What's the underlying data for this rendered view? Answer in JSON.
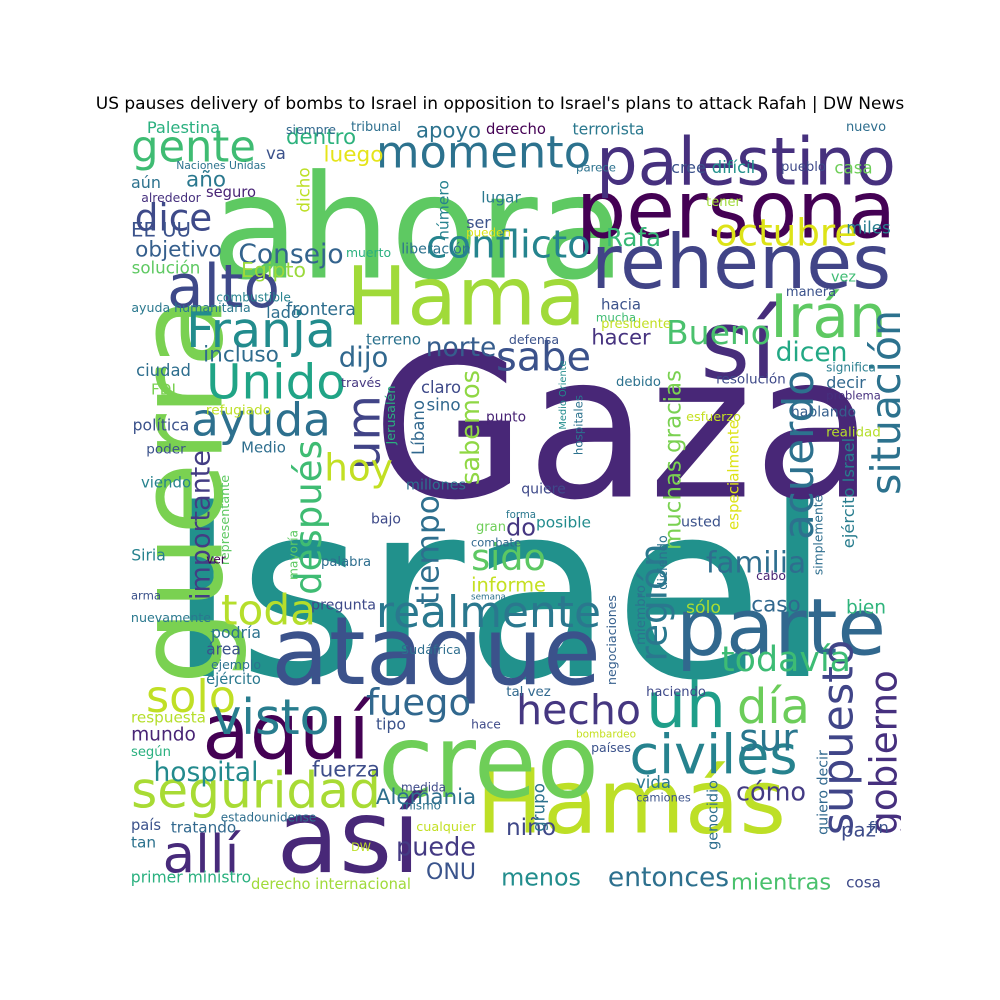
{
  "title": "US pauses delivery of bombs to Israel in opposition to Israel's plans to attack Rafah | DW News",
  "words": [
    {
      "t": "Israel",
      "c": "#21918c"
    },
    {
      "t": "Gaza",
      "c": "#482777"
    },
    {
      "t": "ahora",
      "c": "#5ec962"
    },
    {
      "t": "guerra",
      "c": "#7ad151"
    },
    {
      "t": "persona",
      "c": "#440154"
    },
    {
      "t": "Hama",
      "c": "#a0da39"
    },
    {
      "t": "Hamás",
      "c": "#bddf26"
    },
    {
      "t": "ataque",
      "c": "#3b528b"
    },
    {
      "t": "creo",
      "c": "#6ece58"
    },
    {
      "t": "así",
      "c": "#482878"
    },
    {
      "t": "rehenes",
      "c": "#414487"
    },
    {
      "t": "sí",
      "c": "#472d7b"
    },
    {
      "t": "palestino",
      "c": "#46307e"
    },
    {
      "t": "parte",
      "c": "#31688e"
    },
    {
      "t": "aquí",
      "c": "#440154"
    },
    {
      "t": "momento",
      "c": "#2c728e"
    },
    {
      "t": "uh",
      "c": "#1f9e89"
    },
    {
      "t": "Unido",
      "c": "#20a486"
    },
    {
      "t": "realmente",
      "c": "#2a788e"
    },
    {
      "t": "seguridad",
      "c": "#a8db34"
    },
    {
      "t": "sabe",
      "c": "#3b528b"
    },
    {
      "t": "Irán",
      "c": "#5ec962"
    },
    {
      "t": "alto",
      "c": "#3e4989"
    },
    {
      "t": "gente",
      "c": "#3fbc73"
    },
    {
      "t": "conflicto",
      "c": "#25848e"
    },
    {
      "t": "Franja",
      "c": "#228c8d"
    },
    {
      "t": "ayuda",
      "c": "#2d708e"
    },
    {
      "t": "hecho",
      "c": "#453781"
    },
    {
      "t": "allí",
      "c": "#472a7a"
    },
    {
      "t": "situación",
      "c": "#2c728e"
    },
    {
      "t": "civiles",
      "c": "#26828e"
    },
    {
      "t": "supuesto",
      "c": "#404588"
    },
    {
      "t": "toda",
      "c": "#b5de2b"
    },
    {
      "t": "fuego",
      "c": "#31688e"
    },
    {
      "t": "solo",
      "c": "#c0df25"
    },
    {
      "t": "día",
      "c": "#6ccd5a"
    },
    {
      "t": "visto",
      "c": "#287d8e"
    },
    {
      "t": "todavía",
      "c": "#3dbc74"
    },
    {
      "t": "gobierno",
      "c": "#46307e"
    },
    {
      "t": "acuerdo",
      "c": "#2d718e"
    },
    {
      "t": "um",
      "c": "#414487"
    },
    {
      "t": "octubre",
      "c": "#dde318"
    },
    {
      "t": "dice",
      "c": "#3e4a89"
    },
    {
      "t": "después",
      "c": "#3fbc73"
    },
    {
      "t": "tiempo",
      "c": "#2e6f8e"
    },
    {
      "t": "hoy",
      "c": "#c2df23"
    },
    {
      "t": "sur",
      "c": "#2a768e"
    },
    {
      "t": "cómo",
      "c": "#443b84"
    },
    {
      "t": "región",
      "c": "#2a788e"
    },
    {
      "t": "Bueno",
      "c": "#4ac16d"
    },
    {
      "t": "sido",
      "c": "#5cc863"
    },
    {
      "t": "familia",
      "c": "#2e6e8e"
    },
    {
      "t": "Consejo",
      "c": "#33638d"
    },
    {
      "t": "importante",
      "c": "#433d84"
    },
    {
      "t": "Rafa",
      "c": "#38b977"
    },
    {
      "t": "hacer",
      "c": "#46337f"
    },
    {
      "t": "dicen",
      "c": "#22a884"
    },
    {
      "t": "dijo",
      "c": "#31688e"
    },
    {
      "t": "norte",
      "c": "#365d8d"
    },
    {
      "t": "sabemos",
      "c": "#8fd744"
    },
    {
      "t": "hospital",
      "c": "#238a8d"
    },
    {
      "t": "Alemania",
      "c": "#2e6f8e"
    },
    {
      "t": "puede",
      "c": "#443a83"
    },
    {
      "t": "menos",
      "c": "#228d8d"
    },
    {
      "t": "entonces",
      "c": "#2d708e"
    },
    {
      "t": "mientras",
      "c": "#4ac16d"
    },
    {
      "t": "ONU",
      "c": "#3a548c"
    },
    {
      "t": "niño",
      "c": "#3f4788"
    },
    {
      "t": "fuerza",
      "c": "#3d4d8a"
    },
    {
      "t": "mundo",
      "c": "#482475"
    },
    {
      "t": "do",
      "c": "#453781"
    },
    {
      "t": "informe",
      "c": "#c5e021"
    },
    {
      "t": "incluso",
      "c": "#2f6c8e"
    },
    {
      "t": "dentro",
      "c": "#2db27d"
    },
    {
      "t": "apoyo",
      "c": "#2c728e"
    },
    {
      "t": "luego",
      "c": "#e5e419"
    },
    {
      "t": "año",
      "c": "#2a788e"
    },
    {
      "t": "EE UU",
      "c": "#3b528b"
    },
    {
      "t": "objetivo",
      "c": "#355f8d"
    },
    {
      "t": "Egipto",
      "c": "#9bd93c"
    },
    {
      "t": "frontera",
      "c": "#2e6e8e"
    },
    {
      "t": "paz",
      "c": "#3e4c8a"
    },
    {
      "t": "caso",
      "c": "#31688e"
    },
    {
      "t": "bien",
      "c": "#2fb47c"
    },
    {
      "t": "sólo",
      "c": "#aadc32"
    },
    {
      "t": "muchas gracias",
      "c": "#7ad151"
    },
    {
      "t": "Palestina",
      "c": "#2ab07f"
    },
    {
      "t": "Naciones Unidas",
      "c": "#2c738e"
    },
    {
      "t": "derecho",
      "c": "#440154"
    },
    {
      "t": "terrorista",
      "c": "#2a788e"
    },
    {
      "t": "nuevo",
      "c": "#2e6e8e"
    },
    {
      "t": "siempre",
      "c": "#31688e"
    },
    {
      "t": "tribunal",
      "c": "#2e6f8e"
    },
    {
      "t": "va",
      "c": "#3b528b"
    },
    {
      "t": "aún",
      "c": "#2c728e"
    },
    {
      "t": "alrededor",
      "c": "#46307e"
    },
    {
      "t": "seguro",
      "c": "#482475"
    },
    {
      "t": "dicho",
      "c": "#bddf26"
    },
    {
      "t": "número",
      "c": "#26828e"
    },
    {
      "t": "ser",
      "c": "#3b528b"
    },
    {
      "t": "lugar",
      "c": "#2a788e"
    },
    {
      "t": "parece",
      "c": "#2c728e"
    },
    {
      "t": "cree",
      "c": "#3b528b"
    },
    {
      "t": "difícil",
      "c": "#21918c"
    },
    {
      "t": "pueblo",
      "c": "#3e4989"
    },
    {
      "t": "casa",
      "c": "#6ece58"
    },
    {
      "t": "tener",
      "c": "#a0da39"
    },
    {
      "t": "pueden",
      "c": "#dde318"
    },
    {
      "t": "miles",
      "c": "#287d8e"
    },
    {
      "t": "solución",
      "c": "#5ec962"
    },
    {
      "t": "combustible",
      "c": "#26828e"
    },
    {
      "t": "muerto",
      "c": "#2ab07f"
    },
    {
      "t": "liberación",
      "c": "#2c728e"
    },
    {
      "t": "vez",
      "c": "#3fbc73"
    },
    {
      "t": "manera",
      "c": "#3b528b"
    },
    {
      "t": "ayuda humanitaria",
      "c": "#2a788e"
    },
    {
      "t": "lado",
      "c": "#2e6e8e"
    },
    {
      "t": "hacia",
      "c": "#3b528b"
    },
    {
      "t": "mucha",
      "c": "#3fbc73"
    },
    {
      "t": "presidente",
      "c": "#c2df23"
    },
    {
      "t": "terreno",
      "c": "#2c728e"
    },
    {
      "t": "defensa",
      "c": "#3b528b"
    },
    {
      "t": "ciudad",
      "c": "#2e6e8e"
    },
    {
      "t": "FDI",
      "c": "#7ad151"
    },
    {
      "t": "través",
      "c": "#453781"
    },
    {
      "t": "claro",
      "c": "#3e4a89"
    },
    {
      "t": "sino",
      "c": "#31688e"
    },
    {
      "t": "debido",
      "c": "#2c728e"
    },
    {
      "t": "resolución",
      "c": "#3e4989"
    },
    {
      "t": "significa",
      "c": "#287d8e"
    },
    {
      "t": "decir",
      "c": "#31688e"
    },
    {
      "t": "problema",
      "c": "#46307e"
    },
    {
      "t": "refugiado",
      "c": "#bddf26"
    },
    {
      "t": "Jerusalén",
      "c": "#2ab07f"
    },
    {
      "t": "Líbano",
      "c": "#31688e"
    },
    {
      "t": "punto",
      "c": "#482475"
    },
    {
      "t": "Medio Oriente",
      "c": "#228c8d"
    },
    {
      "t": "hospitales",
      "c": "#2c728e"
    },
    {
      "t": "esfuerzo",
      "c": "#c5e021"
    },
    {
      "t": "hablando",
      "c": "#355f8d"
    },
    {
      "t": "realidad",
      "c": "#b5de2b"
    },
    {
      "t": "política",
      "c": "#3b528b"
    },
    {
      "t": "Medio",
      "c": "#2e6e8e"
    },
    {
      "t": "poder",
      "c": "#3b528b"
    },
    {
      "t": "viendo",
      "c": "#26828e"
    },
    {
      "t": "millones",
      "c": "#2c728e"
    },
    {
      "t": "quiere",
      "c": "#3e4989"
    },
    {
      "t": "especialmente",
      "c": "#dde318"
    },
    {
      "t": "representante",
      "c": "#5ec962"
    },
    {
      "t": "ejército Israel",
      "c": "#287d8e"
    },
    {
      "t": "bajo",
      "c": "#3e4a89"
    },
    {
      "t": "forma",
      "c": "#2a788e"
    },
    {
      "t": "gran",
      "c": "#6ece58"
    },
    {
      "t": "posible",
      "c": "#228c8d"
    },
    {
      "t": "usted",
      "c": "#3b528b"
    },
    {
      "t": "simplemente",
      "c": "#2e6e8e"
    },
    {
      "t": "diciendo",
      "c": "#2c728e"
    },
    {
      "t": "combate",
      "c": "#31688e"
    },
    {
      "t": "ver",
      "c": "#440154"
    },
    {
      "t": "Siria",
      "c": "#26828e"
    },
    {
      "t": "mayoría",
      "c": "#5ec962"
    },
    {
      "t": "palabra",
      "c": "#2e6e8e"
    },
    {
      "t": "semana",
      "c": "#2c728e"
    },
    {
      "t": "cabo",
      "c": "#482475"
    },
    {
      "t": "arma",
      "c": "#3b528b"
    },
    {
      "t": "pregunta",
      "c": "#3e4a89"
    },
    {
      "t": "miembro",
      "c": "#2c728e"
    },
    {
      "t": "nuevamente",
      "c": "#2a788e"
    },
    {
      "t": "podría",
      "c": "#2c728e"
    },
    {
      "t": "área",
      "c": "#3b528b"
    },
    {
      "t": "Sudáfrica",
      "c": "#2e6e8e"
    },
    {
      "t": "negociaciones",
      "c": "#355f8d"
    },
    {
      "t": "ejemplo",
      "c": "#2c728e"
    },
    {
      "t": "ejército",
      "c": "#2a788e"
    },
    {
      "t": "tal vez",
      "c": "#31688e"
    },
    {
      "t": "haciendo",
      "c": "#3e4989"
    },
    {
      "t": "respuesta",
      "c": "#b5de2b"
    },
    {
      "t": "tipo",
      "c": "#3b528b"
    },
    {
      "t": "hace",
      "c": "#3e4a89"
    },
    {
      "t": "bombardeo",
      "c": "#c5e021"
    },
    {
      "t": "países",
      "c": "#3b528b"
    },
    {
      "t": "según",
      "c": "#2ab07f"
    },
    {
      "t": "grupo",
      "c": "#2c728e"
    },
    {
      "t": "vida",
      "c": "#2a788e"
    },
    {
      "t": "camiones",
      "c": "#3b528b"
    },
    {
      "t": "quiero decir",
      "c": "#31688e"
    },
    {
      "t": "genocidio",
      "c": "#2e6e8e"
    },
    {
      "t": "medida",
      "c": "#3e4a89"
    },
    {
      "t": "mismo",
      "c": "#2c728e"
    },
    {
      "t": "cualquier",
      "c": "#c2df23"
    },
    {
      "t": "estadounidense",
      "c": "#2e6e8e"
    },
    {
      "t": "país",
      "c": "#3b528b"
    },
    {
      "t": "tratando",
      "c": "#31688e"
    },
    {
      "t": "tan",
      "c": "#2c728e"
    },
    {
      "t": "DW",
      "c": "#bddf26"
    },
    {
      "t": "fin",
      "c": "#3b528b"
    },
    {
      "t": "primer ministro",
      "c": "#2ab07f"
    },
    {
      "t": "derecho internacional",
      "c": "#a0da39"
    },
    {
      "t": "cosa",
      "c": "#3e4a89"
    }
  ]
}
